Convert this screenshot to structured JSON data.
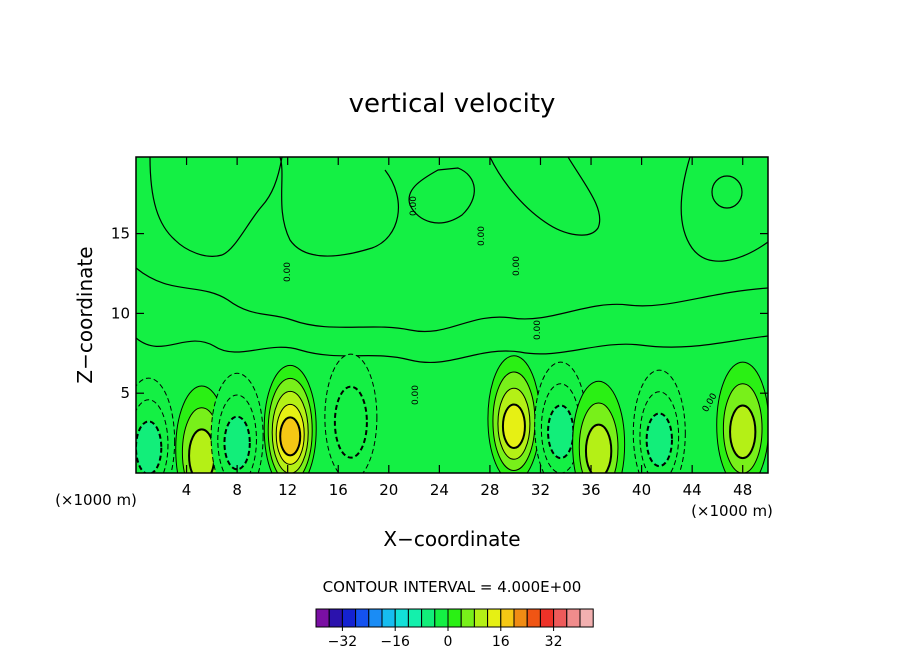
{
  "chart_data": {
    "type": "heatmap",
    "title": "vertical velocity",
    "xlabel": "X−coordinate",
    "ylabel": "Z−coordinate",
    "x_unit_label": "(×1000 m)",
    "z_unit_label": "(×1000 m)",
    "xlim": [
      0,
      50
    ],
    "ylim": [
      0,
      19.8
    ],
    "x_ticks": [
      {
        "value": 4,
        "label": "4"
      },
      {
        "value": 8,
        "label": "8"
      },
      {
        "value": 12,
        "label": "12"
      },
      {
        "value": 16,
        "label": "16"
      },
      {
        "value": 20,
        "label": "20"
      },
      {
        "value": 24,
        "label": "24"
      },
      {
        "value": 28,
        "label": "28"
      },
      {
        "value": 32,
        "label": "32"
      },
      {
        "value": 36,
        "label": "36"
      },
      {
        "value": 40,
        "label": "40"
      },
      {
        "value": 44,
        "label": "44"
      },
      {
        "value": 48,
        "label": "48"
      }
    ],
    "y_ticks": [
      {
        "value": 5,
        "label": "5"
      },
      {
        "value": 10,
        "label": "10"
      },
      {
        "value": 15,
        "label": "15"
      }
    ],
    "contour_interval_text": "CONTOUR INTERVAL = 4.000E+00",
    "contour_interval": 4,
    "contour_line_label": "0.00",
    "background_value": 0,
    "features": [
      {
        "x": 1.0,
        "z": 2.0,
        "value": -8
      },
      {
        "x": 5.2,
        "z": 1.5,
        "value": 6
      },
      {
        "x": 8.0,
        "z": 2.3,
        "value": -6
      },
      {
        "x": 12.2,
        "z": 2.8,
        "value": 16
      },
      {
        "x": 17.0,
        "z": 3.5,
        "value": -4
      },
      {
        "x": 29.9,
        "z": 3.4,
        "value": 12
      },
      {
        "x": 33.6,
        "z": 3.0,
        "value": -6
      },
      {
        "x": 36.6,
        "z": 1.8,
        "value": 9
      },
      {
        "x": 41.4,
        "z": 2.5,
        "value": -8
      },
      {
        "x": 48.0,
        "z": 3.0,
        "value": 8
      }
    ],
    "colorbar": {
      "colors": [
        "#7a0fa3",
        "#2b12ad",
        "#1422d1",
        "#1452f0",
        "#1a8cf5",
        "#16bdf0",
        "#12e0d8",
        "#14f0ac",
        "#12ee7a",
        "#14f044",
        "#2af014",
        "#78f01a",
        "#b4f016",
        "#e6f014",
        "#f5c814",
        "#f08c14",
        "#f05514",
        "#ee3228",
        "#ee5a5a",
        "#f08c8c",
        "#f2b0b0"
      ],
      "tick_labels": [
        {
          "index": 2,
          "label": "−32"
        },
        {
          "index": 6,
          "label": "−16"
        },
        {
          "index": 10,
          "label": "0"
        },
        {
          "index": 14,
          "label": "16"
        },
        {
          "index": 18,
          "label": "32"
        }
      ]
    }
  }
}
